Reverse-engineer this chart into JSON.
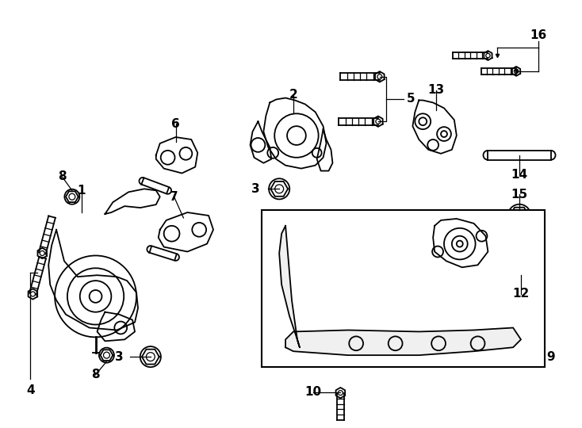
{
  "background_color": "#ffffff",
  "line_color": "#000000",
  "figure_width": 7.34,
  "figure_height": 5.4,
  "dpi": 100
}
